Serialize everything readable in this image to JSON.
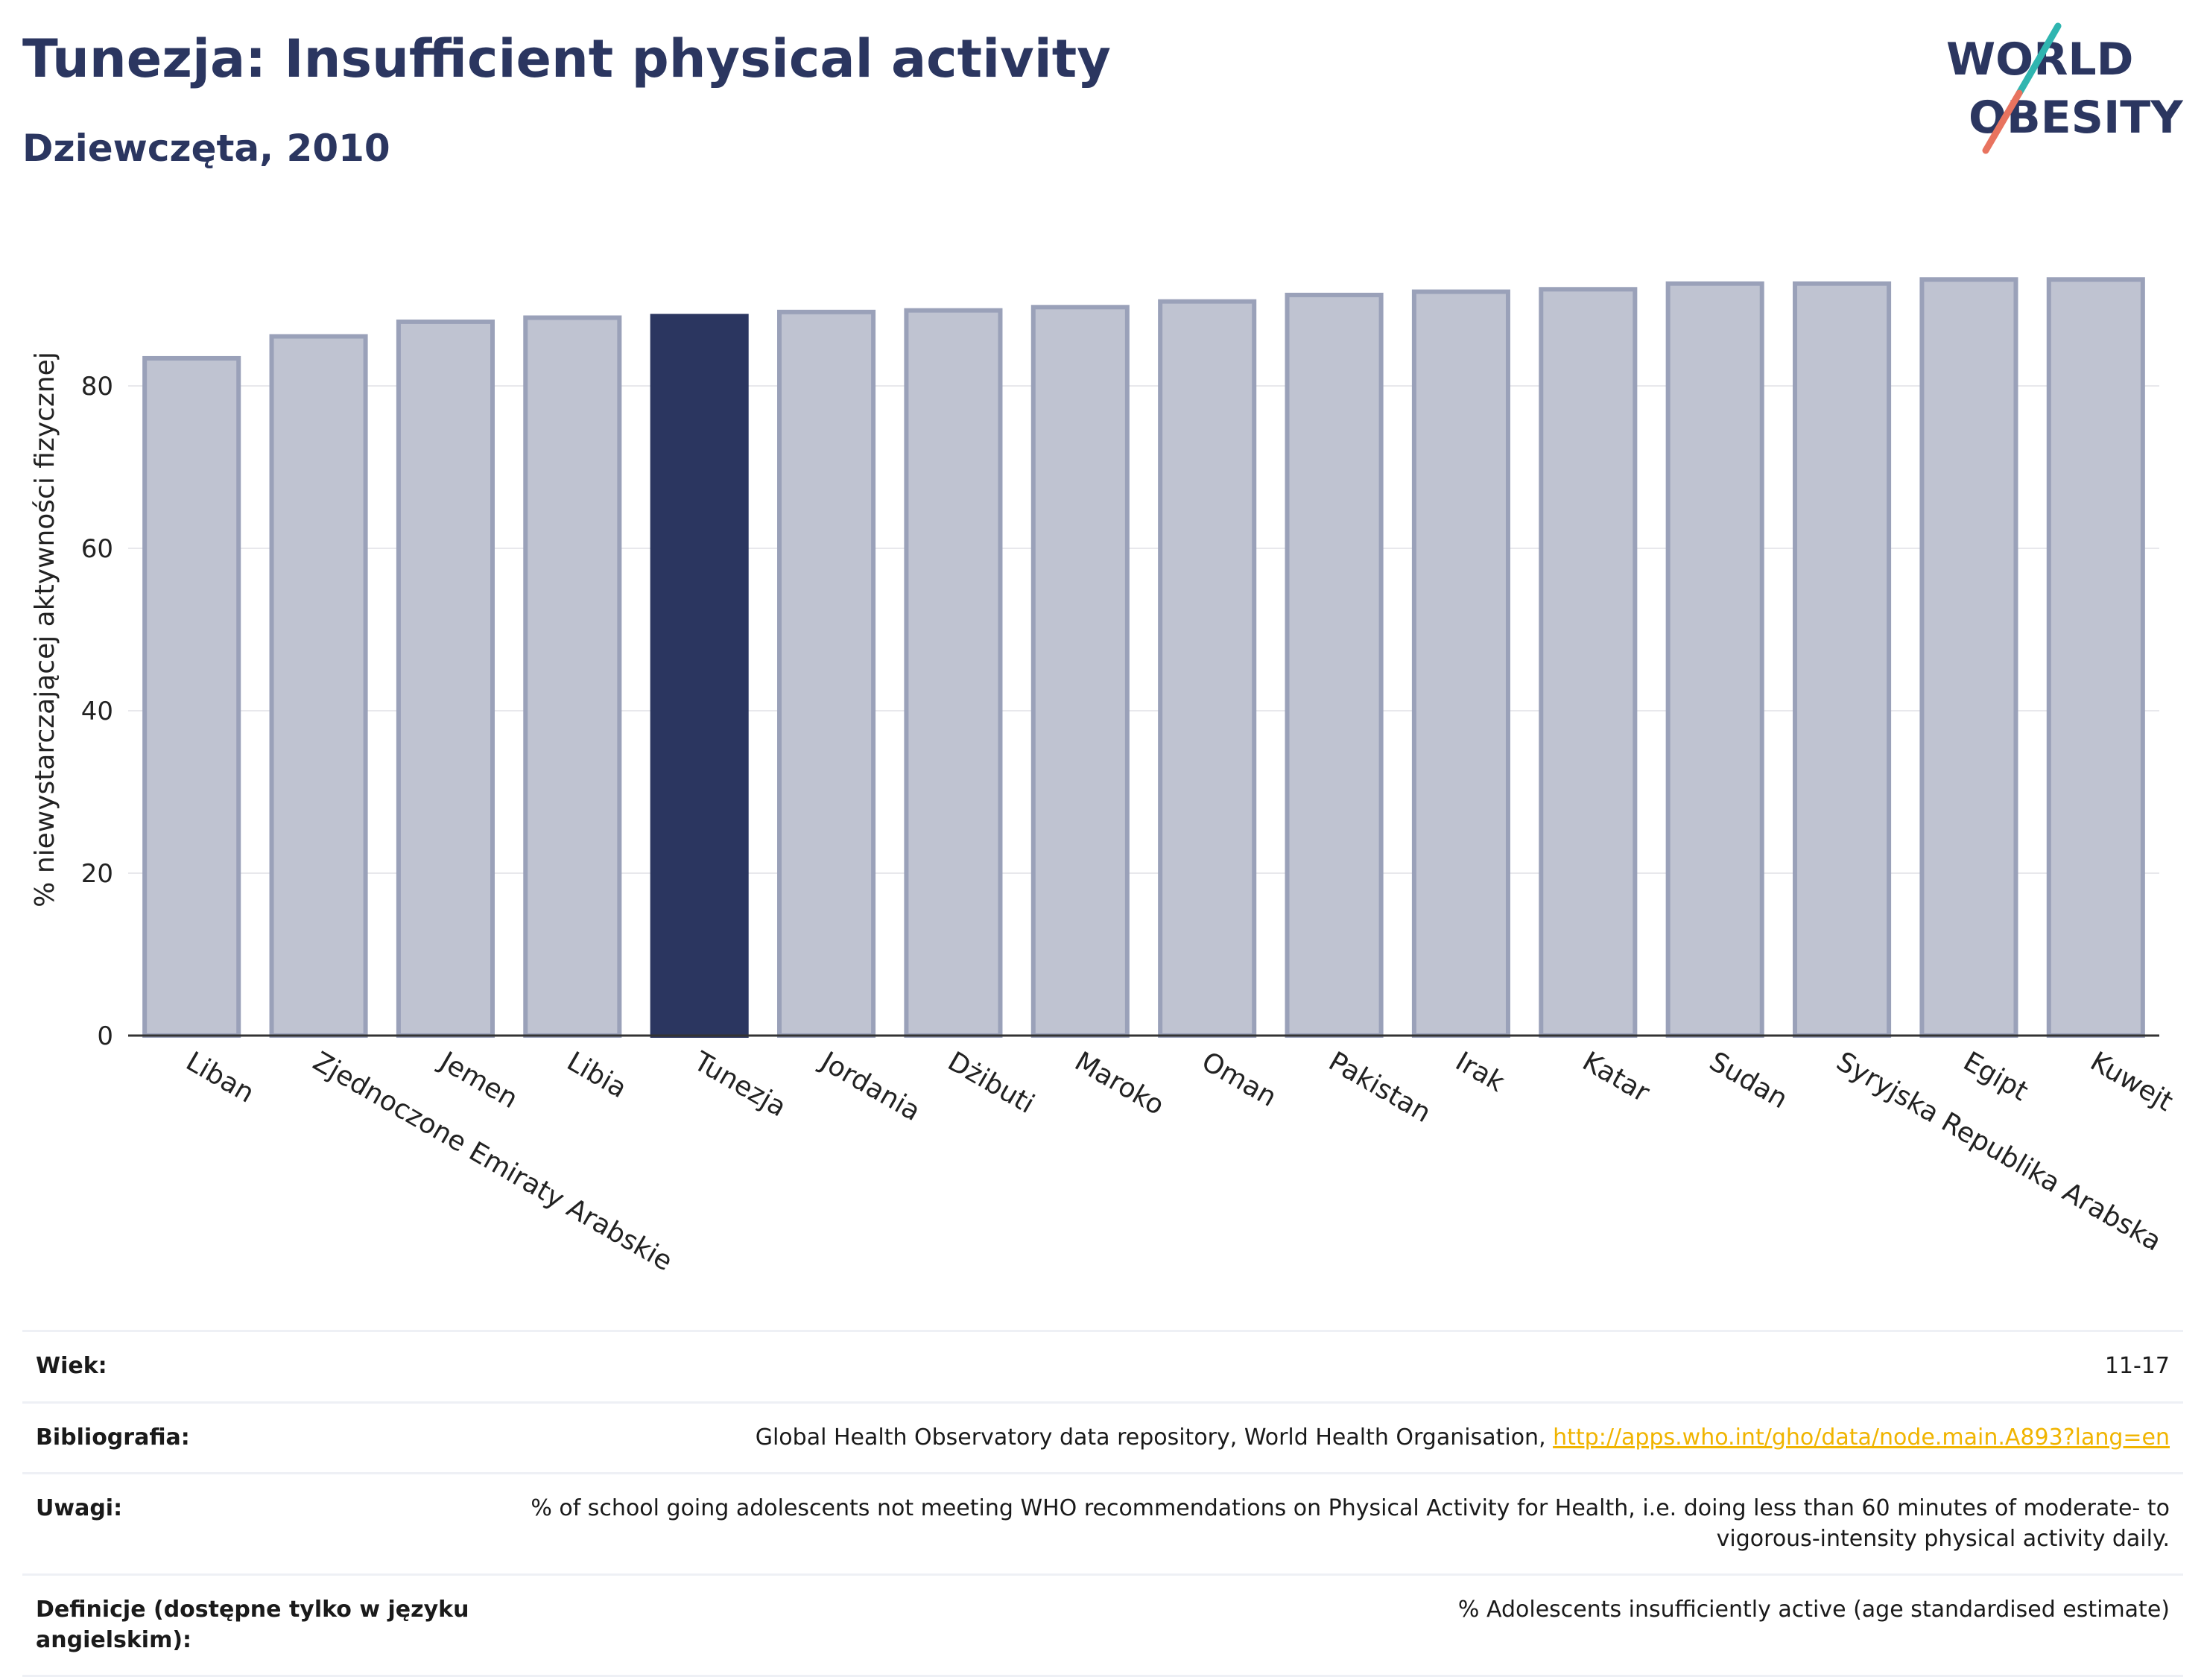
{
  "header": {
    "title": "Tunezja: Insufficient physical activity",
    "subtitle": "Dziewczęta, 2010"
  },
  "logo": {
    "line1": "WORLD",
    "line2": "OBESITY"
  },
  "colors": {
    "highlight": "#2b3660",
    "bar": "#bfc3d1",
    "bar_border": "#9aa1b9",
    "grid": "#e8e8ec",
    "link": "#f0b400",
    "logo_teal": "#2fb5b0",
    "logo_coral": "#e8735f"
  },
  "chart_data": {
    "type": "bar",
    "categories": [
      "Liban",
      "Zjednoczone Emiraty Arabskie",
      "Jemen",
      "Libia",
      "Tunezja",
      "Jordania",
      "Dżibuti",
      "Maroko",
      "Oman",
      "Pakistan",
      "Irak",
      "Katar",
      "Sudan",
      "Syryjska Republika Arabska",
      "Egipt",
      "Kuwejt"
    ],
    "values": [
      83.4,
      86.1,
      87.9,
      88.4,
      88.6,
      89.1,
      89.3,
      89.7,
      90.4,
      91.2,
      91.6,
      91.9,
      92.6,
      92.6,
      93.1,
      93.1
    ],
    "highlight": "Tunezja",
    "xlabel": "",
    "ylabel": "% niewystarczającej aktywności fizycznej",
    "ylim": [
      0,
      100
    ],
    "yticks": [
      0,
      20,
      40,
      60,
      80
    ],
    "grid": true,
    "legend": "none"
  },
  "info": {
    "age_label": "Wiek:",
    "age_value": "11-17",
    "bib_label": "Bibliografia:",
    "bib_text": "Global Health Observatory data repository, World Health Organisation, ",
    "bib_link": "http://apps.who.int/gho/data/node.main.A893?lang=en",
    "notes_label": "Uwagi:",
    "notes_value": "% of school going adolescents not meeting WHO recommendations on Physical Activity for Health, i.e. doing less than 60 minutes of moderate- to vigorous-intensity physical activity daily.",
    "def_label": "Definicje (dostępne tylko w języku angielskim):",
    "def_value": "% Adolescents insufficiently active (age standardised estimate)"
  }
}
